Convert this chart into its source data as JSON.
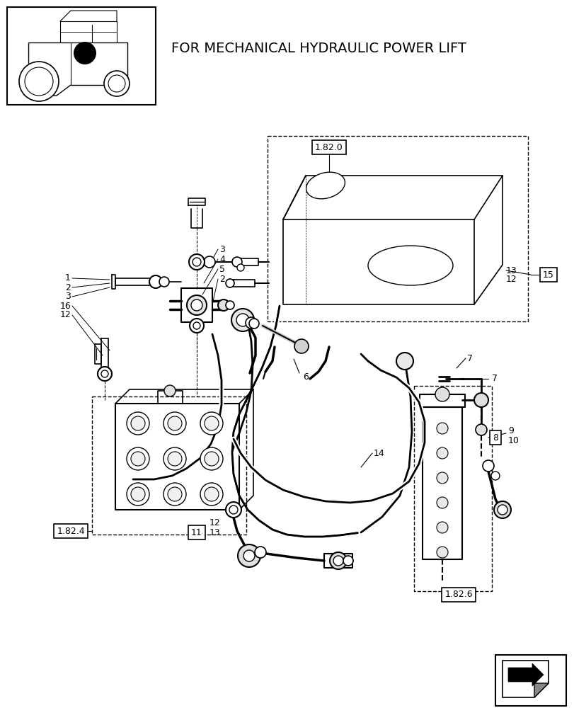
{
  "title": "FOR MECHANICAL HYDRAULIC POWER LIFT",
  "bg": "#ffffff",
  "lc": "#000000",
  "fig_w": 8.12,
  "fig_h": 10.0,
  "dpi": 100
}
